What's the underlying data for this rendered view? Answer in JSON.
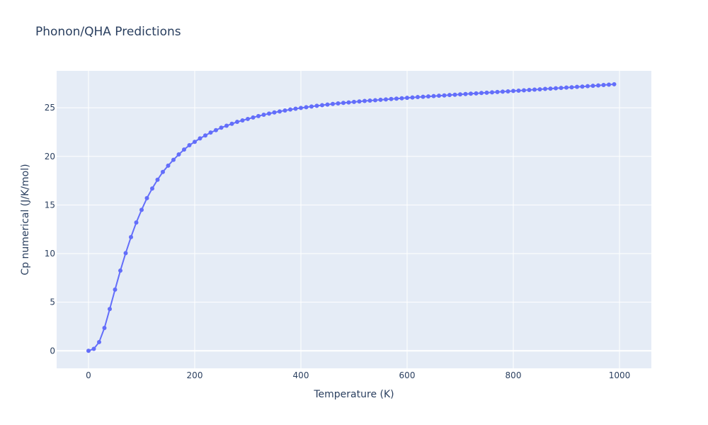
{
  "chart_data": {
    "type": "line",
    "title": "Phonon/QHA Predictions",
    "xlabel": "Temperature (K)",
    "ylabel": "Cp numerical (J/K/mol)",
    "xlim": [
      -60,
      1060
    ],
    "ylim": [
      -1.8,
      28.8
    ],
    "x_ticks": [
      0,
      200,
      400,
      600,
      800,
      1000
    ],
    "y_ticks": [
      0,
      5,
      10,
      15,
      20,
      25
    ],
    "x_tick_labels": [
      "0",
      "200",
      "400",
      "600",
      "800",
      "1000"
    ],
    "y_tick_labels": [
      "0",
      "5",
      "10",
      "15",
      "20",
      "25"
    ],
    "grid": true,
    "legend": "none",
    "colors": {
      "plot_background": "#e5ecf6",
      "grid": "#ffffff",
      "series": "#636efa",
      "text": "#2a3f5f"
    },
    "series": [
      {
        "mode": "lines+markers",
        "x": [
          0,
          10,
          20,
          30,
          40,
          50,
          60,
          70,
          80,
          90,
          100,
          110,
          120,
          130,
          140,
          150,
          160,
          170,
          180,
          190,
          200,
          210,
          220,
          230,
          240,
          250,
          260,
          270,
          280,
          290,
          300,
          310,
          320,
          330,
          340,
          350,
          360,
          370,
          380,
          390,
          400,
          410,
          420,
          430,
          440,
          450,
          460,
          470,
          480,
          490,
          500,
          510,
          520,
          530,
          540,
          550,
          560,
          570,
          580,
          590,
          600,
          610,
          620,
          630,
          640,
          650,
          660,
          670,
          680,
          690,
          700,
          710,
          720,
          730,
          740,
          750,
          760,
          770,
          780,
          790,
          800,
          810,
          820,
          830,
          840,
          850,
          860,
          870,
          880,
          890,
          900,
          910,
          920,
          930,
          940,
          950,
          960,
          970,
          980,
          990
        ],
        "y": [
          0,
          0.2,
          0.9,
          2.35,
          4.3,
          6.3,
          8.25,
          10.05,
          11.7,
          13.2,
          14.5,
          15.7,
          16.7,
          17.6,
          18.4,
          19.05,
          19.65,
          20.2,
          20.7,
          21.15,
          21.5,
          21.85,
          22.15,
          22.45,
          22.7,
          22.95,
          23.15,
          23.35,
          23.55,
          23.7,
          23.85,
          24.0,
          24.15,
          24.28,
          24.4,
          24.52,
          24.62,
          24.72,
          24.82,
          24.9,
          24.98,
          25.06,
          25.13,
          25.2,
          25.27,
          25.33,
          25.39,
          25.45,
          25.5,
          25.55,
          25.6,
          25.65,
          25.7,
          25.74,
          25.78,
          25.82,
          25.86,
          25.9,
          25.94,
          25.98,
          26.02,
          26.06,
          26.1,
          26.13,
          26.17,
          26.2,
          26.24,
          26.27,
          26.31,
          26.34,
          26.38,
          26.41,
          26.45,
          26.48,
          26.52,
          26.55,
          26.59,
          26.62,
          26.66,
          26.69,
          26.73,
          26.76,
          26.8,
          26.83,
          26.87,
          26.9,
          26.94,
          26.97,
          27.01,
          27.04,
          27.08,
          27.11,
          27.15,
          27.18,
          27.22,
          27.26,
          27.3,
          27.34,
          27.38,
          27.42
        ]
      }
    ]
  }
}
